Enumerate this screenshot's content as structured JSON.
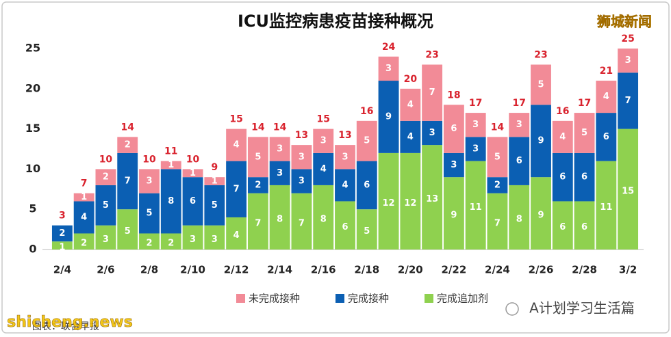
{
  "chart_data": {
    "type": "bar",
    "stacked": true,
    "title": "ICU监控病患疫苗接种概况",
    "categories": [
      "2/4",
      null,
      "2/6",
      null,
      "2/8",
      null,
      "2/10",
      null,
      "2/12",
      null,
      "2/14",
      null,
      "2/16",
      null,
      "2/18",
      null,
      "2/20",
      null,
      "2/22",
      null,
      "2/24",
      null,
      "2/26",
      null,
      "2/28",
      null,
      "3/2"
    ],
    "series": [
      {
        "name": "完成追加剂",
        "color": "#8fd14f",
        "values": [
          1,
          2,
          3,
          5,
          2,
          2,
          3,
          3,
          4,
          7,
          8,
          7,
          8,
          6,
          5,
          12,
          12,
          13,
          9,
          11,
          7,
          8,
          9,
          6,
          6,
          11,
          15
        ]
      },
      {
        "name": "完成接种",
        "color": "#0b5fb3",
        "values": [
          2,
          4,
          5,
          7,
          5,
          8,
          6,
          5,
          7,
          2,
          3,
          3,
          4,
          4,
          6,
          9,
          4,
          3,
          3,
          3,
          2,
          6,
          9,
          6,
          6,
          6,
          7
        ]
      },
      {
        "name": "未完成接种",
        "color": "#f28b97",
        "values": [
          0,
          1,
          2,
          2,
          3,
          1,
          1,
          1,
          4,
          5,
          3,
          3,
          3,
          3,
          5,
          3,
          4,
          7,
          6,
          3,
          5,
          3,
          5,
          4,
          5,
          4,
          3
        ]
      }
    ],
    "totals": [
      3,
      7,
      10,
      14,
      10,
      11,
      10,
      9,
      15,
      14,
      14,
      13,
      15,
      13,
      16,
      24,
      20,
      23,
      18,
      17,
      14,
      17,
      23,
      16,
      17,
      21,
      25
    ],
    "ylim": [
      0,
      25
    ],
    "yticks": [
      0,
      5,
      10,
      15,
      20,
      25
    ],
    "grid": false
  },
  "watermarks": {
    "brand": "狮城新闻",
    "site": "shicheng.news",
    "source": "图表：联合早报",
    "account": "A计划学习生活篇"
  }
}
